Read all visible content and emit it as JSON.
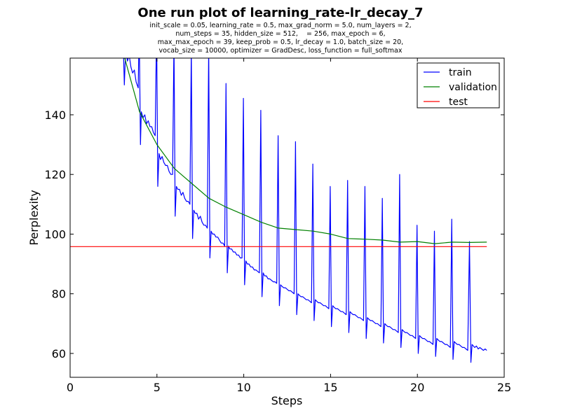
{
  "chart_data": {
    "type": "line",
    "title": "One run plot of learning_rate-lr_decay_7",
    "subtitle_lines": [
      "init_scale = 0.05, learning_rate = 0.5, max_grad_norm = 5.0, num_layers = 2,",
      "num_steps = 35, hidden_size = 512,    = 256, max_epoch = 6,",
      "max_max_epoch = 39, keep_prob = 0.5, lr_decay = 1.0, batch_size = 20,",
      "vocab_size = 10000, optimizer = GradDesc, loss_function = full_softmax"
    ],
    "xlabel": "Steps",
    "ylabel": "Perplexity",
    "xlim": [
      0,
      25
    ],
    "ylim": [
      52,
      159
    ],
    "x_ticks": [
      0,
      5,
      10,
      15,
      20,
      25
    ],
    "y_ticks": [
      60,
      80,
      100,
      120,
      140
    ],
    "grid": false,
    "legend_position": "top-right",
    "series": [
      {
        "name": "train",
        "color": "#0000ff",
        "points": [
          [
            3.0,
            170
          ],
          [
            3.08,
            159
          ],
          [
            3.12,
            150
          ],
          [
            3.2,
            162
          ],
          [
            3.3,
            158
          ],
          [
            3.4,
            160
          ],
          [
            3.5,
            156
          ],
          [
            3.6,
            154
          ],
          [
            3.7,
            155
          ],
          [
            3.8,
            151
          ],
          [
            3.92,
            149
          ],
          [
            3.98,
            170
          ],
          [
            4.05,
            130
          ],
          [
            4.1,
            141
          ],
          [
            4.2,
            139
          ],
          [
            4.3,
            140
          ],
          [
            4.4,
            137
          ],
          [
            4.5,
            138
          ],
          [
            4.6,
            136
          ],
          [
            4.7,
            136
          ],
          [
            4.8,
            134
          ],
          [
            4.9,
            133
          ],
          [
            4.98,
            170
          ],
          [
            5.05,
            116
          ],
          [
            5.12,
            127
          ],
          [
            5.2,
            125
          ],
          [
            5.3,
            126
          ],
          [
            5.4,
            124
          ],
          [
            5.5,
            123
          ],
          [
            5.6,
            123
          ],
          [
            5.7,
            121
          ],
          [
            5.8,
            120
          ],
          [
            5.9,
            120
          ],
          [
            5.98,
            165
          ],
          [
            6.05,
            106
          ],
          [
            6.12,
            116
          ],
          [
            6.2,
            115
          ],
          [
            6.3,
            115
          ],
          [
            6.4,
            113
          ],
          [
            6.5,
            114
          ],
          [
            6.6,
            112
          ],
          [
            6.7,
            111
          ],
          [
            6.8,
            111
          ],
          [
            6.9,
            110
          ],
          [
            6.98,
            162
          ],
          [
            7.05,
            98.5
          ],
          [
            7.12,
            108
          ],
          [
            7.2,
            107
          ],
          [
            7.3,
            107
          ],
          [
            7.4,
            105
          ],
          [
            7.5,
            106
          ],
          [
            7.6,
            104
          ],
          [
            7.7,
            103
          ],
          [
            7.8,
            103
          ],
          [
            7.9,
            102
          ],
          [
            7.98,
            163
          ],
          [
            8.05,
            92
          ],
          [
            8.12,
            101
          ],
          [
            8.2,
            100
          ],
          [
            8.3,
            100
          ],
          [
            8.4,
            99
          ],
          [
            8.5,
            99
          ],
          [
            8.6,
            98
          ],
          [
            8.7,
            97
          ],
          [
            8.8,
            97
          ],
          [
            8.9,
            96
          ],
          [
            8.98,
            150.5
          ],
          [
            9.05,
            87
          ],
          [
            9.12,
            96
          ],
          [
            9.2,
            95
          ],
          [
            9.3,
            95
          ],
          [
            9.4,
            94
          ],
          [
            9.5,
            94
          ],
          [
            9.6,
            93
          ],
          [
            9.7,
            93
          ],
          [
            9.8,
            92
          ],
          [
            9.9,
            92
          ],
          [
            9.98,
            145.5
          ],
          [
            10.05,
            83
          ],
          [
            10.12,
            91
          ],
          [
            10.2,
            90
          ],
          [
            10.3,
            90
          ],
          [
            10.4,
            89
          ],
          [
            10.5,
            89
          ],
          [
            10.6,
            88
          ],
          [
            10.7,
            88
          ],
          [
            10.8,
            87.5
          ],
          [
            10.9,
            87
          ],
          [
            10.98,
            141.5
          ],
          [
            11.05,
            79
          ],
          [
            11.12,
            87
          ],
          [
            11.2,
            86
          ],
          [
            11.3,
            86
          ],
          [
            11.4,
            85
          ],
          [
            11.5,
            85
          ],
          [
            11.6,
            84.5
          ],
          [
            11.7,
            84
          ],
          [
            11.8,
            84
          ],
          [
            11.9,
            83.5
          ],
          [
            11.98,
            133
          ],
          [
            12.05,
            76
          ],
          [
            12.12,
            83
          ],
          [
            12.2,
            82.5
          ],
          [
            12.3,
            82
          ],
          [
            12.4,
            82
          ],
          [
            12.5,
            81.5
          ],
          [
            12.6,
            81
          ],
          [
            12.7,
            81
          ],
          [
            12.8,
            80.5
          ],
          [
            12.9,
            80
          ],
          [
            12.98,
            131
          ],
          [
            13.05,
            73
          ],
          [
            13.12,
            80
          ],
          [
            13.2,
            79.5
          ],
          [
            13.3,
            79
          ],
          [
            13.4,
            79
          ],
          [
            13.5,
            78.5
          ],
          [
            13.6,
            78
          ],
          [
            13.7,
            78
          ],
          [
            13.8,
            77.5
          ],
          [
            13.9,
            77
          ],
          [
            13.98,
            123.5
          ],
          [
            14.05,
            71
          ],
          [
            14.12,
            78
          ],
          [
            14.2,
            77.5
          ],
          [
            14.3,
            77
          ],
          [
            14.4,
            77
          ],
          [
            14.5,
            76.5
          ],
          [
            14.6,
            76
          ],
          [
            14.7,
            76
          ],
          [
            14.8,
            75.5
          ],
          [
            14.9,
            75
          ],
          [
            14.98,
            116
          ],
          [
            15.05,
            69
          ],
          [
            15.12,
            76
          ],
          [
            15.2,
            75.5
          ],
          [
            15.3,
            75
          ],
          [
            15.4,
            75
          ],
          [
            15.5,
            74.5
          ],
          [
            15.6,
            74
          ],
          [
            15.7,
            74
          ],
          [
            15.8,
            73.5
          ],
          [
            15.9,
            73
          ],
          [
            15.98,
            118
          ],
          [
            16.05,
            67
          ],
          [
            16.12,
            74
          ],
          [
            16.2,
            73.5
          ],
          [
            16.3,
            73
          ],
          [
            16.4,
            73
          ],
          [
            16.5,
            72.5
          ],
          [
            16.6,
            72
          ],
          [
            16.7,
            72
          ],
          [
            16.8,
            71.5
          ],
          [
            16.9,
            71
          ],
          [
            16.98,
            116
          ],
          [
            17.05,
            65
          ],
          [
            17.12,
            72
          ],
          [
            17.2,
            71.5
          ],
          [
            17.3,
            71
          ],
          [
            17.4,
            71
          ],
          [
            17.5,
            70.5
          ],
          [
            17.6,
            70
          ],
          [
            17.7,
            70
          ],
          [
            17.8,
            69.5
          ],
          [
            17.9,
            69
          ],
          [
            17.98,
            112
          ],
          [
            18.05,
            63.5
          ],
          [
            18.12,
            70
          ],
          [
            18.2,
            69.5
          ],
          [
            18.3,
            69
          ],
          [
            18.4,
            69
          ],
          [
            18.5,
            68.5
          ],
          [
            18.6,
            68
          ],
          [
            18.7,
            68
          ],
          [
            18.8,
            67.5
          ],
          [
            18.9,
            67
          ],
          [
            18.98,
            120
          ],
          [
            19.05,
            62
          ],
          [
            19.12,
            68
          ],
          [
            19.2,
            67.5
          ],
          [
            19.3,
            67
          ],
          [
            19.4,
            67
          ],
          [
            19.5,
            66.5
          ],
          [
            19.6,
            66
          ],
          [
            19.7,
            66
          ],
          [
            19.8,
            65.5
          ],
          [
            19.9,
            65
          ],
          [
            19.98,
            103
          ],
          [
            20.05,
            60
          ],
          [
            20.12,
            66
          ],
          [
            20.2,
            65.5
          ],
          [
            20.3,
            65
          ],
          [
            20.4,
            65
          ],
          [
            20.5,
            64.5
          ],
          [
            20.6,
            64
          ],
          [
            20.7,
            64
          ],
          [
            20.8,
            63.5
          ],
          [
            20.9,
            63
          ],
          [
            20.98,
            101
          ],
          [
            21.05,
            59
          ],
          [
            21.12,
            65
          ],
          [
            21.2,
            64.5
          ],
          [
            21.3,
            64
          ],
          [
            21.4,
            64
          ],
          [
            21.5,
            63.5
          ],
          [
            21.6,
            63
          ],
          [
            21.7,
            63
          ],
          [
            21.8,
            62.5
          ],
          [
            21.9,
            62
          ],
          [
            21.98,
            105
          ],
          [
            22.05,
            58
          ],
          [
            22.12,
            64
          ],
          [
            22.2,
            63.5
          ],
          [
            22.3,
            63
          ],
          [
            22.4,
            63
          ],
          [
            22.5,
            62.5
          ],
          [
            22.6,
            62
          ],
          [
            22.7,
            62
          ],
          [
            22.8,
            61.5
          ],
          [
            22.9,
            61
          ],
          [
            23.0,
            97.5
          ],
          [
            23.08,
            57
          ],
          [
            23.15,
            63
          ],
          [
            23.3,
            62
          ],
          [
            23.4,
            62.5
          ],
          [
            23.5,
            61.5
          ],
          [
            23.6,
            62
          ],
          [
            23.7,
            61.5
          ],
          [
            23.8,
            61
          ],
          [
            23.9,
            61.5
          ],
          [
            24.0,
            61
          ]
        ]
      },
      {
        "name": "validation",
        "color": "#008000",
        "points": [
          [
            3,
            162
          ],
          [
            4,
            141
          ],
          [
            5,
            130
          ],
          [
            6,
            122
          ],
          [
            7,
            117
          ],
          [
            8,
            112
          ],
          [
            9,
            109
          ],
          [
            10,
            106.5
          ],
          [
            11,
            104
          ],
          [
            12,
            102
          ],
          [
            13,
            101.5
          ],
          [
            14,
            101
          ],
          [
            15,
            100
          ],
          [
            16,
            98.5
          ],
          [
            17,
            98.3
          ],
          [
            18,
            98
          ],
          [
            19,
            97.3
          ],
          [
            20,
            97.5
          ],
          [
            21,
            96.8
          ],
          [
            22,
            97.3
          ],
          [
            23,
            97.2
          ],
          [
            24,
            97.3
          ]
        ]
      },
      {
        "name": "test",
        "color": "#ff0000",
        "points": [
          [
            0,
            95.8
          ],
          [
            24,
            95.8
          ]
        ]
      }
    ]
  }
}
